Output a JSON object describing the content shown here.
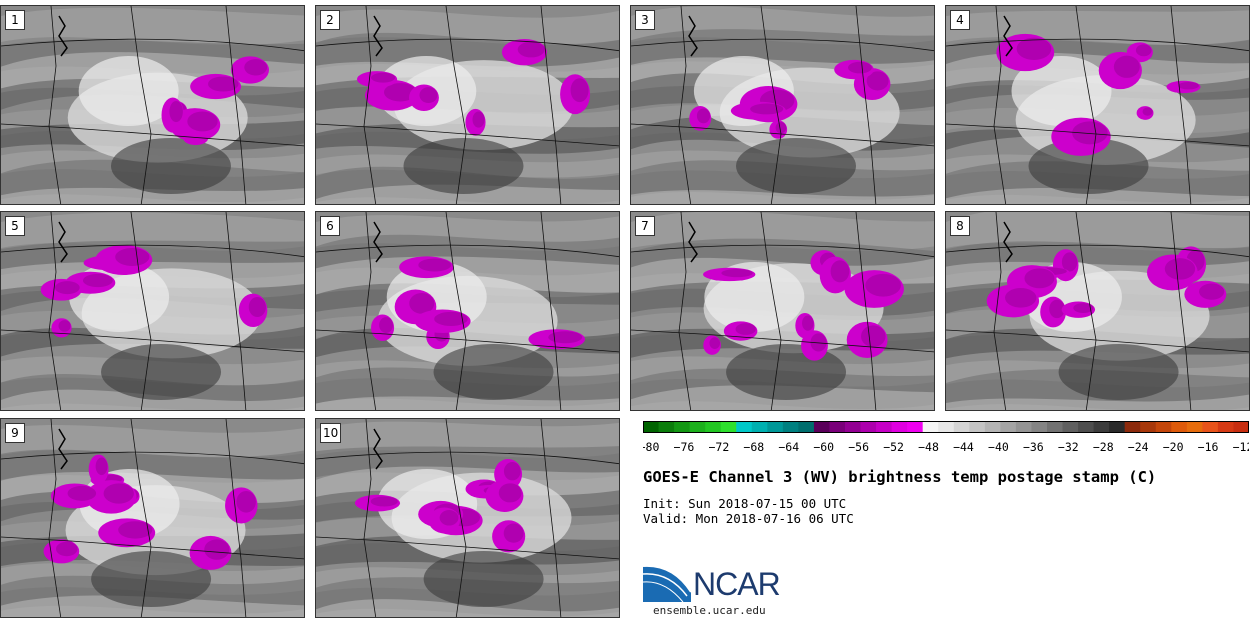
{
  "panels": [
    {
      "label": "1"
    },
    {
      "label": "2"
    },
    {
      "label": "3"
    },
    {
      "label": "4"
    },
    {
      "label": "5"
    },
    {
      "label": "6"
    },
    {
      "label": "7"
    },
    {
      "label": "8"
    },
    {
      "label": "9"
    },
    {
      "label": "10"
    }
  ],
  "colorbar": {
    "ticks": [
      "−80",
      "−76",
      "−72",
      "−68",
      "−64",
      "−60",
      "−56",
      "−52",
      "−48",
      "−44",
      "−40",
      "−36",
      "−32",
      "−28",
      "−24",
      "−20",
      "−16",
      "−12"
    ],
    "colors": [
      "#006400",
      "#0b7d0b",
      "#139713",
      "#1cb01c",
      "#22c622",
      "#2ee02e",
      "#00c8c8",
      "#00b0b0",
      "#009898",
      "#008080",
      "#006e6e",
      "#5a005a",
      "#7a007a",
      "#930093",
      "#ad00ad",
      "#c600c6",
      "#e000e0",
      "#f000f0",
      "#f4f4f4",
      "#e6e6e6",
      "#d4d4d4",
      "#c4c4c4",
      "#b4b4b4",
      "#a4a4a4",
      "#949494",
      "#848484",
      "#727272",
      "#606060",
      "#4e4e4e",
      "#3c3c3c",
      "#2a2a2a",
      "#8c2a0c",
      "#a8380a",
      "#c4460a",
      "#de5a0a",
      "#e66c0c",
      "#e8531a",
      "#d63a14",
      "#c82e10"
    ]
  },
  "title": "GOES-E Channel 3 (WV) brightness temp postage stamp (C)",
  "init": "Init: Sun 2018-07-15 00 UTC",
  "valid": "Valid: Mon 2018-07-16 06 UTC",
  "logo": {
    "text": "NCAR",
    "site": "ensemble.ucar.edu"
  }
}
